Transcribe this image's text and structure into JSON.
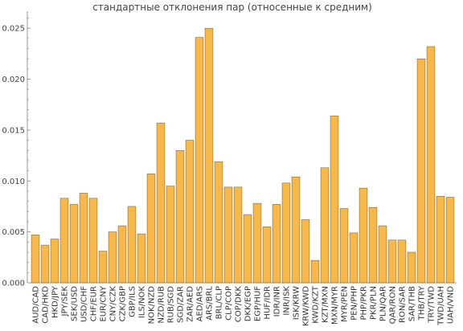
{
  "chart_data": {
    "type": "bar",
    "title": "стандартные отклонения пар (относенные к средним)",
    "xlabel": "",
    "ylabel": "",
    "ylim": [
      0,
      0.0262
    ],
    "yticks": [
      "0.000",
      "0.005",
      "0.010",
      "0.015",
      "0.020",
      "0.025"
    ],
    "ytick_values": [
      0,
      0.005,
      0.01,
      0.015,
      0.02,
      0.025
    ],
    "grid": false,
    "bar_color": "#f7b84b",
    "bar_edge_color": "#8a6a2a",
    "axis_color": "#9a9a9a",
    "categories": [
      "AUD/CAD",
      "CAD/HKD",
      "HKD/JPY",
      "JPY/SEK",
      "SEK/USD",
      "USD/CHF",
      "CHF/EUR",
      "EUR/CNY",
      "CNY/CZK",
      "CZK/GBP",
      "GBP/ILS",
      "ILS/NOK",
      "NOK/NZD",
      "NZD/RUB",
      "RUB/SGD",
      "SGD/ZAR",
      "ZAR/AED",
      "AED/ARS",
      "ARS/BRL",
      "BRL/CLP",
      "CLP/COP",
      "COP/DKK",
      "DKK/EGP",
      "EGP/HUF",
      "HUF/IDR",
      "IDR/INR",
      "INR/ISK",
      "ISK/KRW",
      "KRW/KWD",
      "KWD/KZT",
      "KZT/MXN",
      "MXN/MYR",
      "MYR/PEN",
      "PEN/PHP",
      "PHP/PKR",
      "PKR/PLN",
      "PLN/QAR",
      "QAR/RON",
      "RON/SAR",
      "SAR/THB",
      "THB/TRY",
      "TRY/TWD",
      "TWD/UAH",
      "UAH/VND"
    ],
    "values": [
      0.0047,
      0.0037,
      0.0043,
      0.0083,
      0.0077,
      0.0088,
      0.0083,
      0.0031,
      0.005,
      0.0056,
      0.0075,
      0.0048,
      0.0107,
      0.0157,
      0.0095,
      0.013,
      0.014,
      0.0241,
      0.025,
      0.0119,
      0.0094,
      0.0094,
      0.0067,
      0.0078,
      0.0055,
      0.0077,
      0.0098,
      0.0104,
      0.0062,
      0.0022,
      0.0113,
      0.0164,
      0.0073,
      0.0049,
      0.0093,
      0.0074,
      0.0056,
      0.0042,
      0.0042,
      0.003,
      0.022,
      0.0232,
      0.0085,
      0.0084
    ]
  }
}
